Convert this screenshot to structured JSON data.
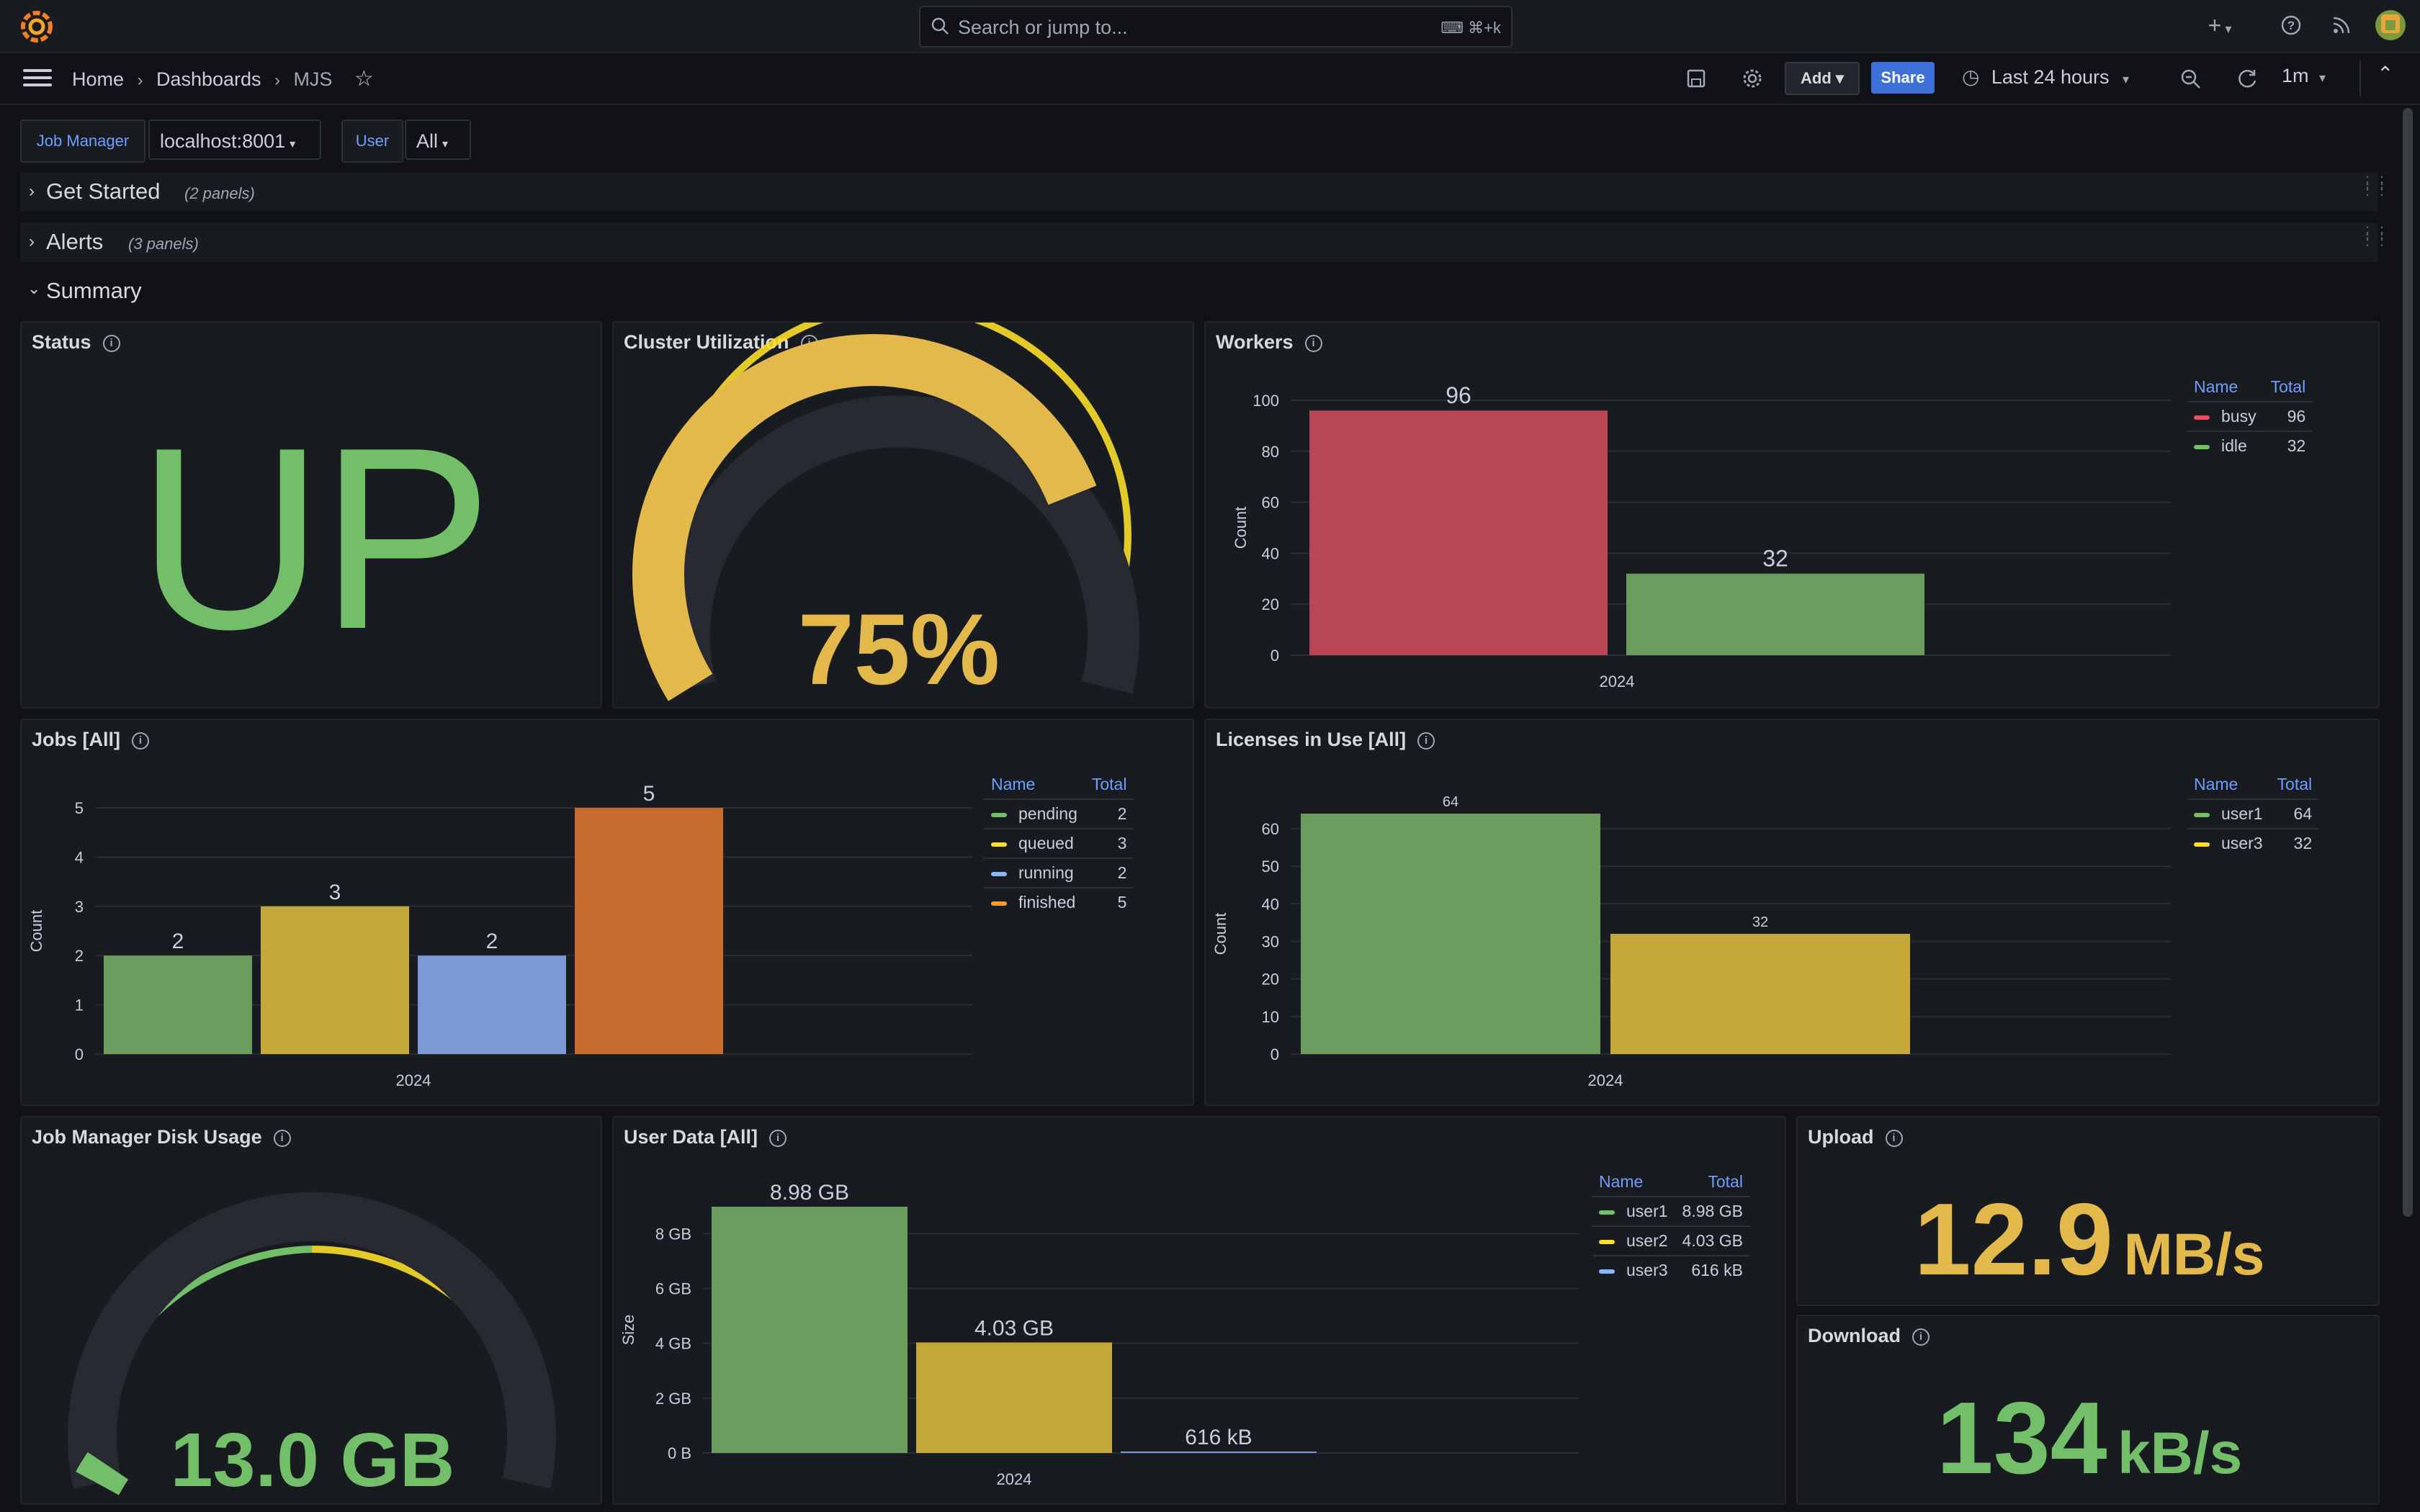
{
  "colors": {
    "green": "#73bf69",
    "red": "#f2495c",
    "yellow": "#fade2a",
    "blue": "#8ab8ff",
    "orange": "#ff9830",
    "link": "#6e9fff",
    "bar_green": "#6b9c5e",
    "bar_red": "#b84655",
    "bar_yellow": "#c4a83a",
    "bar_blue": "#7b99d3",
    "bar_orange": "#c86b2f",
    "gauge_yellow": "#e4b94c"
  },
  "topbar": {
    "logo_icon": "grafana-logo",
    "search_placeholder": "Search or jump to...",
    "search_shortcut": "⌘+k",
    "icons": [
      "plus-icon",
      "help-icon",
      "rss-icon",
      "user-avatar"
    ]
  },
  "navbar": {
    "breadcrumbs": [
      "Home",
      "Dashboards",
      "MJS"
    ],
    "add_label": "Add",
    "share_label": "Share",
    "time_range": "Last 24 hours",
    "refresh_interval": "1m"
  },
  "variables": [
    {
      "label": "Job Manager",
      "value": "localhost:8001"
    },
    {
      "label": "User",
      "value": "All"
    }
  ],
  "rows": [
    {
      "title": "Get Started",
      "count": "(2 panels)",
      "collapsed": true
    },
    {
      "title": "Alerts",
      "count": "(3 panels)",
      "collapsed": true
    },
    {
      "title": "Summary",
      "collapsed": false
    }
  ],
  "panels": {
    "status": {
      "title": "Status",
      "value": "UP"
    },
    "cluster": {
      "title": "Cluster Utilization",
      "value": "75%"
    },
    "workers": {
      "title": "Workers",
      "legend_headers": [
        "Name",
        "Total"
      ]
    },
    "jobs": {
      "title": "Jobs [All]",
      "legend_headers": [
        "Name",
        "Total"
      ]
    },
    "licenses": {
      "title": "Licenses in Use [All]",
      "legend_headers": [
        "Name",
        "Total"
      ]
    },
    "disk": {
      "title": "Job Manager Disk Usage",
      "value": "13.0 GB"
    },
    "userdata": {
      "title": "User Data [All]",
      "legend_headers": [
        "Name",
        "Total"
      ]
    },
    "upload": {
      "title": "Upload",
      "value": "12.9",
      "unit": "MB/s"
    },
    "download": {
      "title": "Download",
      "value": "134",
      "unit": "kB/s"
    }
  },
  "chart_data": [
    {
      "type": "gauge",
      "panel": "Cluster Utilization",
      "value": 75,
      "unit": "%",
      "min": 0,
      "max": 100,
      "thresholds": [
        {
          "from": 0,
          "color": "red"
        },
        {
          "from": 5,
          "color": "yellow"
        },
        {
          "from": 95,
          "color": "green"
        }
      ]
    },
    {
      "type": "bar",
      "panel": "Workers",
      "categories": [
        "2024"
      ],
      "series": [
        {
          "name": "busy",
          "values": [
            96
          ],
          "color": "#b84655",
          "legend_color": "#f2495c"
        },
        {
          "name": "idle",
          "values": [
            32
          ],
          "color": "#6b9c5e",
          "legend_color": "#73bf69"
        }
      ],
      "ylabel": "Count",
      "yticks": [
        0,
        20,
        40,
        60,
        80,
        100
      ],
      "ylim": [
        0,
        100
      ],
      "value_labels": [
        "96",
        "32"
      ],
      "legend_totals": [
        "96",
        "32"
      ],
      "legend": "right"
    },
    {
      "type": "bar",
      "panel": "Jobs [All]",
      "categories": [
        "2024"
      ],
      "series": [
        {
          "name": "pending",
          "values": [
            2
          ],
          "color": "#6b9c5e",
          "legend_color": "#73bf69"
        },
        {
          "name": "queued",
          "values": [
            3
          ],
          "color": "#c4a83a",
          "legend_color": "#fade2a"
        },
        {
          "name": "running",
          "values": [
            2
          ],
          "color": "#7b99d3",
          "legend_color": "#8ab8ff"
        },
        {
          "name": "finished",
          "values": [
            5
          ],
          "color": "#c86b2f",
          "legend_color": "#ff9830"
        }
      ],
      "ylabel": "Count",
      "yticks": [
        0,
        1,
        2,
        3,
        4,
        5
      ],
      "ylim": [
        0,
        5
      ],
      "value_labels": [
        "2",
        "3",
        "2",
        "5"
      ],
      "legend_totals": [
        "2",
        "3",
        "2",
        "5"
      ],
      "legend": "right"
    },
    {
      "type": "bar",
      "panel": "Licenses in Use [All]",
      "categories": [
        "2024"
      ],
      "series": [
        {
          "name": "user1",
          "values": [
            64
          ],
          "color": "#6b9c5e",
          "legend_color": "#73bf69"
        },
        {
          "name": "user3",
          "values": [
            32
          ],
          "color": "#c4a83a",
          "legend_color": "#fade2a"
        }
      ],
      "ylabel": "Count",
      "yticks": [
        0,
        10,
        20,
        30,
        40,
        50,
        60
      ],
      "ylim": [
        0,
        64
      ],
      "value_labels": [
        "64",
        "32"
      ],
      "legend_totals": [
        "64",
        "32"
      ],
      "legend": "right"
    },
    {
      "type": "gauge",
      "panel": "Job Manager Disk Usage",
      "value": 13.0,
      "unit": "GB",
      "min": 0,
      "max": 100,
      "thresholds": [
        {
          "from": 0,
          "color": "green"
        },
        {
          "from": 50,
          "color": "yellow"
        },
        {
          "from": 80,
          "color": "red"
        }
      ]
    },
    {
      "type": "bar",
      "panel": "User Data [All]",
      "categories": [
        "2024"
      ],
      "series": [
        {
          "name": "user1",
          "values": [
            8.98
          ],
          "color": "#6b9c5e",
          "legend_color": "#73bf69"
        },
        {
          "name": "user2",
          "values": [
            4.03
          ],
          "color": "#c4a83a",
          "legend_color": "#fade2a"
        },
        {
          "name": "user3",
          "values": [
            0.000616
          ],
          "color": "#7b99d3",
          "legend_color": "#8ab8ff"
        }
      ],
      "ylabel": "Size",
      "yunit": "GB",
      "yticks": [
        "0 B",
        "2 GB",
        "4 GB",
        "6 GB",
        "8 GB"
      ],
      "ytick_values": [
        0,
        2,
        4,
        6,
        8
      ],
      "ylim": [
        0,
        8.98
      ],
      "value_labels": [
        "8.98 GB",
        "4.03 GB",
        "616 kB"
      ],
      "legend_totals": [
        "8.98 GB",
        "4.03 GB",
        "616 kB"
      ],
      "legend": "right"
    }
  ]
}
